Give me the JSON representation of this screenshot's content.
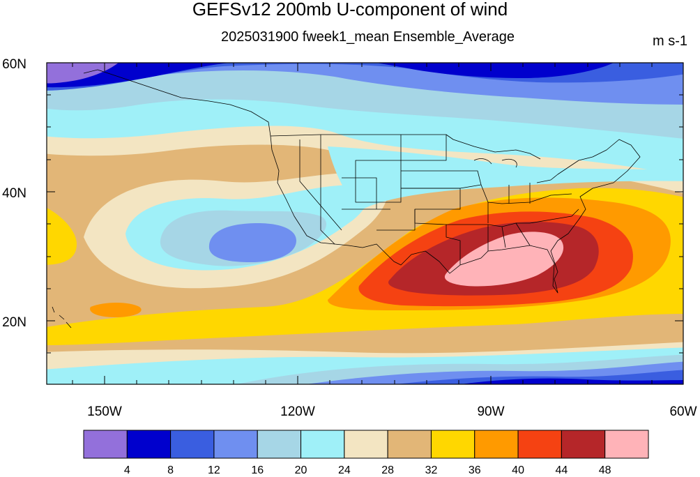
{
  "title": "GEFSv12 200mb U-component of wind",
  "subtitle": "2025031900 fweek1_mean Ensemble_Average",
  "units": "m s-1",
  "lat_labels": [
    "60N",
    "40N",
    "20N"
  ],
  "lon_labels": [
    "150W",
    "120W",
    "90W",
    "60W"
  ],
  "colorbar": {
    "colors": [
      "#9370db",
      "#0000cd",
      "#3a5ee0",
      "#6f8ff0",
      "#a6d6e6",
      "#9ff0f8",
      "#f3e5c2",
      "#e2b677",
      "#ffd700",
      "#ff9a00",
      "#f54212",
      "#b52629",
      "#ffb3b8"
    ],
    "labels": [
      "4",
      "8",
      "12",
      "16",
      "20",
      "24",
      "28",
      "32",
      "36",
      "40",
      "44",
      "48"
    ]
  },
  "map": {
    "lat_range": [
      10,
      60
    ],
    "lon_range": [
      -159,
      -60
    ]
  }
}
